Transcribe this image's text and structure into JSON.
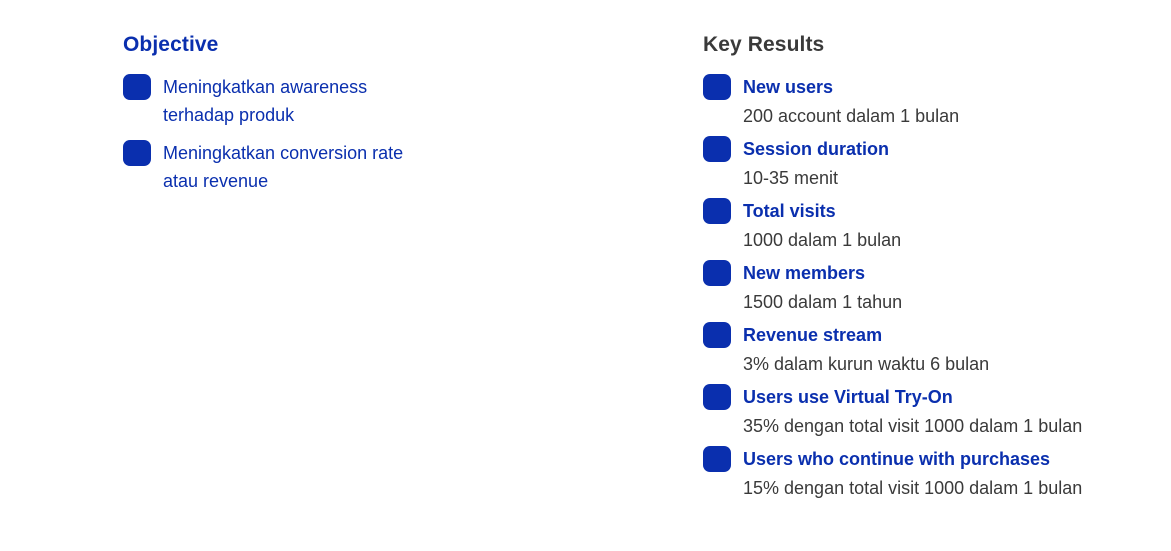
{
  "objective": {
    "heading": "Objective",
    "items": [
      "Meningkatkan awareness terhadap produk",
      "Meningkatkan conversion rate atau revenue"
    ]
  },
  "key_results": {
    "heading": "Key Results",
    "items": [
      {
        "title": "New users",
        "desc": "200 account dalam 1 bulan"
      },
      {
        "title": "Session duration",
        "desc": "10-35 menit"
      },
      {
        "title": "Total visits",
        "desc": "1000 dalam 1 bulan"
      },
      {
        "title": "New members",
        "desc": "1500 dalam 1 tahun"
      },
      {
        "title": "Revenue stream",
        "desc": "3% dalam kurun waktu 6 bulan"
      },
      {
        "title": "Users use Virtual Try-On",
        "desc": "35% dengan total visit 1000 dalam 1 bulan"
      },
      {
        "title": "Users who continue with purchases",
        "desc": "15% dengan total visit 1000 dalam 1 bulan"
      }
    ]
  },
  "colors": {
    "accent": "#0a2fae",
    "text": "#3a3a3a",
    "background": "#ffffff"
  }
}
